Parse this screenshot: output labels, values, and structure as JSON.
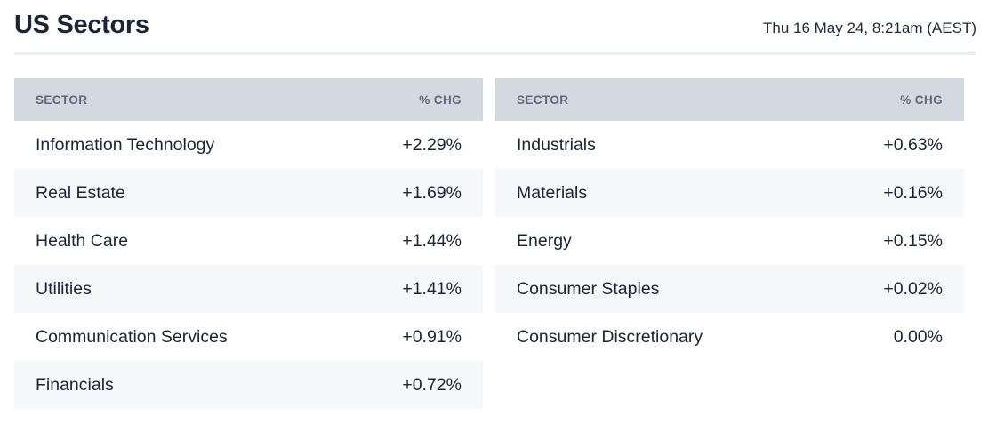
{
  "page": {
    "title": "US Sectors",
    "timestamp": "Thu 16 May 24, 8:21am (AEST)"
  },
  "colors": {
    "title": "#1b2433",
    "body_text": "#1c2433",
    "header_bg": "#d3d9e0",
    "header_text": "#5a6a7a",
    "stripe_bg": "#f6f7f8",
    "positive": "#2e7a55",
    "negative": "#dd4b34",
    "divider": "#e8eef7",
    "page_bg": "#ffffff"
  },
  "tables": [
    {
      "headers": {
        "sector": "SECTOR",
        "chg": "% CHG"
      },
      "rows": [
        {
          "sector": "Information Technology",
          "chg": "+2.29%",
          "direction": "positive"
        },
        {
          "sector": "Real Estate",
          "chg": "+1.69%",
          "direction": "positive"
        },
        {
          "sector": "Health Care",
          "chg": "+1.44%",
          "direction": "positive"
        },
        {
          "sector": "Utilities",
          "chg": "+1.41%",
          "direction": "positive"
        },
        {
          "sector": "Communication Services",
          "chg": "+0.91%",
          "direction": "positive"
        },
        {
          "sector": "Financials",
          "chg": "+0.72%",
          "direction": "positive"
        }
      ]
    },
    {
      "headers": {
        "sector": "SECTOR",
        "chg": "% CHG"
      },
      "rows": [
        {
          "sector": "Industrials",
          "chg": "+0.63%",
          "direction": "positive"
        },
        {
          "sector": "Materials",
          "chg": "+0.16%",
          "direction": "positive"
        },
        {
          "sector": "Energy",
          "chg": "+0.15%",
          "direction": "positive"
        },
        {
          "sector": "Consumer Staples",
          "chg": "+0.02%",
          "direction": "positive"
        },
        {
          "sector": "Consumer Discretionary",
          "chg": "0.00%",
          "direction": "neutral"
        }
      ]
    }
  ],
  "chart_data": {
    "type": "table",
    "title": "US Sectors",
    "timestamp": "Thu 16 May 24, 8:21am (AEST)",
    "columns": [
      "SECTOR",
      "% CHG"
    ],
    "series": [
      {
        "name": "left-table",
        "categories": [
          "Information Technology",
          "Real Estate",
          "Health Care",
          "Utilities",
          "Communication Services",
          "Financials"
        ],
        "values": [
          2.29,
          1.69,
          1.44,
          1.41,
          0.91,
          0.72
        ]
      },
      {
        "name": "right-table",
        "categories": [
          "Industrials",
          "Materials",
          "Energy",
          "Consumer Staples",
          "Consumer Discretionary"
        ],
        "values": [
          0.63,
          0.16,
          0.15,
          0.02,
          0.0
        ]
      }
    ]
  }
}
